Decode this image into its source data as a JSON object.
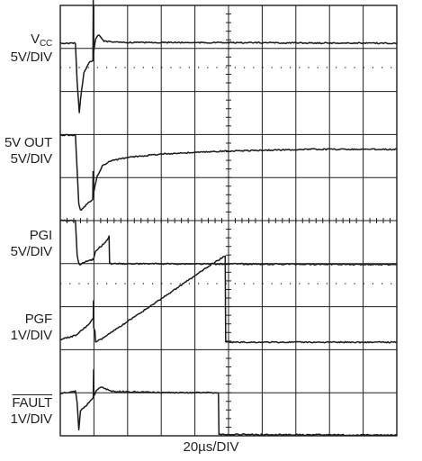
{
  "chart_data": {
    "type": "line",
    "title": "",
    "xlabel": "20µs/DIV",
    "time_per_div_us": 20,
    "x_divisions": 10,
    "xlim_us": [
      0,
      200
    ],
    "grid": true,
    "channels": [
      {
        "name_main": "V",
        "name_sub": "CC",
        "scale": "5V/DIV",
        "points": [
          [
            0,
            0
          ],
          [
            9,
            0
          ],
          [
            10,
            -0.9
          ],
          [
            11.3,
            -1.6
          ],
          [
            12,
            -1.3
          ],
          [
            14,
            -0.7
          ],
          [
            17,
            -0.45
          ],
          [
            19.4,
            -0.4
          ],
          [
            19.6,
            1.0
          ],
          [
            19.8,
            -0.2
          ],
          [
            21,
            0.1
          ],
          [
            23,
            0.2
          ],
          [
            26,
            0.05
          ],
          [
            35,
            0.02
          ],
          [
            200,
            0
          ]
        ]
      },
      {
        "name_main": "5V OUT",
        "name_sub": "",
        "scale": "5V/DIV",
        "points": [
          [
            0,
            0
          ],
          [
            9,
            0
          ],
          [
            10,
            -0.8
          ],
          [
            11,
            -1.6
          ],
          [
            12,
            -1.75
          ],
          [
            13.5,
            -1.7
          ],
          [
            16,
            -1.6
          ],
          [
            19.3,
            -1.5
          ],
          [
            19.5,
            -0.85
          ],
          [
            19.7,
            -1.45
          ],
          [
            20,
            -1.3
          ],
          [
            22,
            -0.95
          ],
          [
            25,
            -0.72
          ],
          [
            30,
            -0.6
          ],
          [
            40,
            -0.52
          ],
          [
            60,
            -0.44
          ],
          [
            100,
            -0.37
          ],
          [
            150,
            -0.33
          ],
          [
            200,
            -0.33
          ]
        ]
      },
      {
        "name_main": "PGI",
        "name_sub": "",
        "scale": "5V/DIV",
        "points": [
          [
            0,
            0
          ],
          [
            9,
            0
          ],
          [
            10,
            -0.8
          ],
          [
            11,
            -1.0
          ],
          [
            12,
            -1.03
          ],
          [
            14,
            -0.97
          ],
          [
            18,
            -0.92
          ],
          [
            19.6,
            -0.9
          ],
          [
            21,
            -0.72
          ],
          [
            24,
            -0.6
          ],
          [
            27,
            -0.5
          ],
          [
            28.5,
            -0.4
          ],
          [
            29,
            -0.35
          ],
          [
            29.3,
            -1.0
          ],
          [
            31,
            -1.0
          ],
          [
            200,
            -1.02
          ]
        ]
      },
      {
        "name_main": "PGF",
        "name_sub": "",
        "scale": "1V/DIV",
        "points": [
          [
            0,
            0.1
          ],
          [
            9,
            0.2
          ],
          [
            12,
            0.3
          ],
          [
            17,
            0.45
          ],
          [
            19.6,
            0.6
          ],
          [
            19.7,
            1.0
          ],
          [
            19.85,
            0.38
          ],
          [
            20.6,
            0.3
          ],
          [
            21,
            0.05
          ],
          [
            24,
            0.1
          ],
          [
            60,
            1.05
          ],
          [
            90,
            1.85
          ],
          [
            98,
            2.05
          ],
          [
            98.3,
            0.04
          ],
          [
            200,
            0.04
          ]
        ]
      },
      {
        "name_main": "FAULT",
        "name_sub": "",
        "scale": "1V/DIV",
        "overline": true,
        "points": [
          [
            0,
            0
          ],
          [
            9,
            0.05
          ],
          [
            10,
            -0.2
          ],
          [
            11,
            -0.85
          ],
          [
            12,
            -0.4
          ],
          [
            15,
            -0.3
          ],
          [
            19.6,
            -0.1
          ],
          [
            19.8,
            0.55
          ],
          [
            20,
            -0.05
          ],
          [
            22,
            0.1
          ],
          [
            25,
            0.15
          ],
          [
            30,
            0.05
          ],
          [
            60,
            0.02
          ],
          [
            94,
            0.02
          ],
          [
            94.3,
            -0.95
          ],
          [
            200,
            -0.97
          ]
        ]
      }
    ]
  },
  "colors": {
    "grid": "#1c1c1c",
    "trace": "#1a1a1a",
    "text": "#231f20"
  }
}
